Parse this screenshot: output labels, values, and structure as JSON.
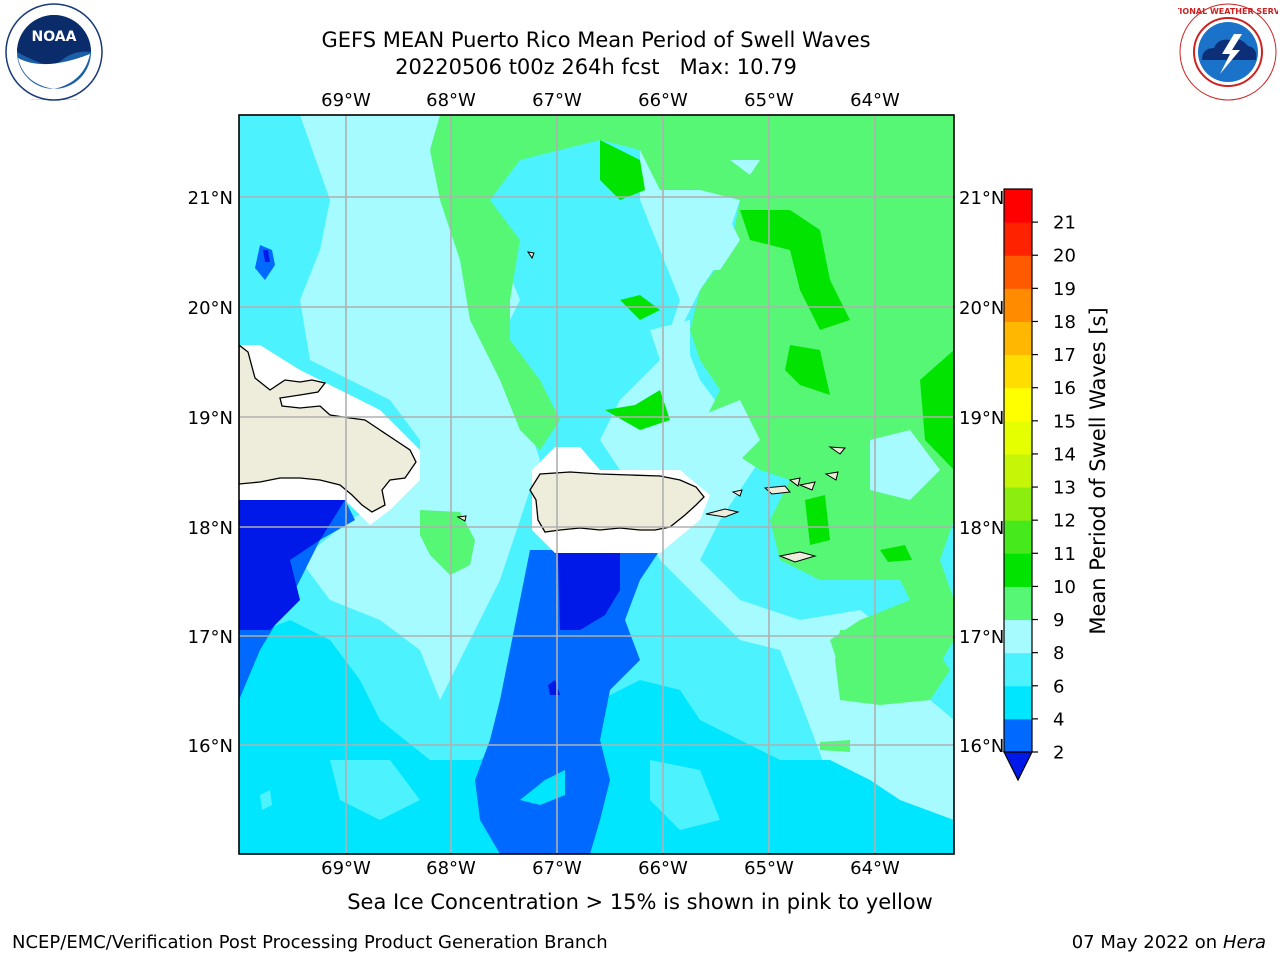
{
  "title_line1": "GEFS MEAN Puerto Rico Mean Period of Swell Waves",
  "title_line2": "20220506 t00z 264h fcst   Max: 10.79",
  "footer_note": "Sea Ice Concentration > 15% is shown in pink to yellow",
  "credit": "NCEP/EMC/Verification Post Processing Product Generation Branch",
  "run_date": "07 May 2022 on",
  "machine": "Hera",
  "logos": {
    "left": {
      "text": "NOAA",
      "ring_text": "NATIONAL OCEANIC AND ATMOSPHERIC ADMINISTRATION · U.S. DEPARTMENT OF COMMERCE"
    },
    "right": {
      "ring_text": "NATIONAL WEATHER SERVICE"
    }
  },
  "map": {
    "lon_labels": [
      "69°W",
      "68°W",
      "67°W",
      "66°W",
      "65°W",
      "64°W"
    ],
    "lat_labels": [
      "21°N",
      "20°N",
      "19°N",
      "18°N",
      "17°N",
      "16°N"
    ],
    "land_color": "#eeeddc",
    "mask_color": "#ffffff"
  },
  "colorbar": {
    "label": "Mean Period of Swell Waves [s]",
    "ticks": [
      "2",
      "4",
      "6",
      "8",
      "9",
      "10",
      "11",
      "12",
      "13",
      "14",
      "15",
      "16",
      "17",
      "18",
      "19",
      "20",
      "21"
    ],
    "colors": [
      "#0069ff",
      "#00e6ff",
      "#4cf3ff",
      "#a5fbff",
      "#55f775",
      "#00e400",
      "#45e91c",
      "#8bee0e",
      "#c6f607",
      "#e6ff00",
      "#ffff00",
      "#ffdd00",
      "#ffb700",
      "#ff8c00",
      "#ff5a00",
      "#ff2200",
      "#ff0000"
    ],
    "extend_color": "#0019e8"
  }
}
